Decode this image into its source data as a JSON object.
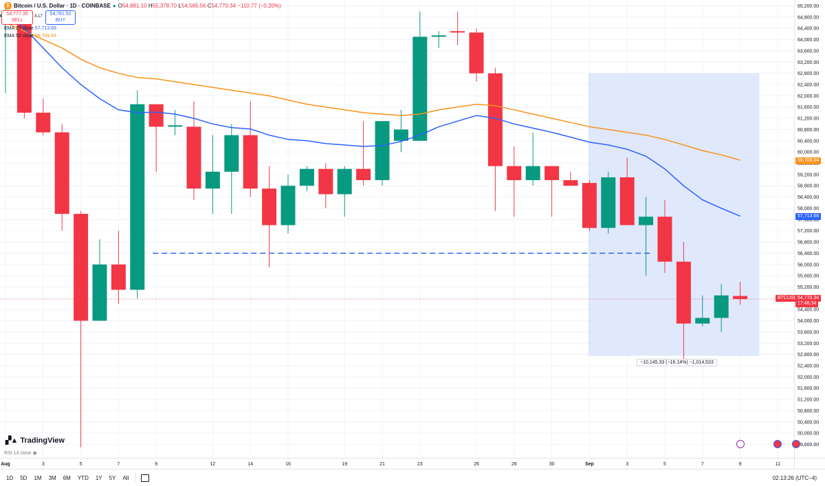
{
  "header": {
    "symbol": "Bitcoin / U.S. Dollar · 1D · COINBASE",
    "open": "54,881.10",
    "high": "55,378.70",
    "low": "54,565.56",
    "close": "54,770.34",
    "change": "−110.77 (−0.20%)"
  },
  "trade": {
    "sell_price": "54,777.35",
    "sell_label": "SELL",
    "spread": "4.17",
    "buy_price": "54,781.52",
    "buy_label": "BUY"
  },
  "indicators": {
    "ema20_label": "EMA 20 close",
    "ema20_value": "57,713.69",
    "ema50_label": "EMA 50 close",
    "ema50_value": "59,708.64",
    "rsi_label": "RSI 14 close"
  },
  "price_tags": {
    "ema20": "57,713.68",
    "ema50": "59,708.64",
    "symbol": "BTCUSD",
    "last": "54,770.34",
    "countdown": "17:46:34"
  },
  "measure_label": "−10,145.33 (−16.14%) −1,014,533",
  "logo": "TradingView",
  "timeframes": [
    "1D",
    "5D",
    "1M",
    "3M",
    "6M",
    "YTD",
    "1Y",
    "5Y",
    "All"
  ],
  "clock": "02:13:26 (UTC−4)",
  "colors": {
    "up": "#089981",
    "down": "#f23645",
    "ema20": "#2962ff",
    "ema50": "#f7931a",
    "range": "#dbe4fb"
  },
  "chart_data": {
    "type": "candlestick",
    "y_ticks": [
      49600,
      50000,
      50400,
      50800,
      51200,
      51600,
      52000,
      52400,
      52800,
      53200,
      53600,
      54000,
      54400,
      54800,
      55200,
      55600,
      56000,
      56400,
      56800,
      57200,
      57600,
      58000,
      58400,
      58800,
      59200,
      59600,
      60000,
      60400,
      60800,
      61200,
      61600,
      62000,
      62400,
      62800,
      63200,
      63600,
      64000,
      64400,
      64800,
      65200
    ],
    "x_ticks": [
      "Aug",
      "3",
      "5",
      "7",
      "9",
      "12",
      "14",
      "16",
      "19",
      "21",
      "23",
      "26",
      "28",
      "30",
      "Sep",
      "3",
      "5",
      "7",
      "9",
      "11"
    ],
    "candles": [
      {
        "o": 64800,
        "h": 65200,
        "l": 62100,
        "c": 64900
      },
      {
        "o": 64800,
        "h": 65000,
        "l": 61200,
        "c": 61400
      },
      {
        "o": 61400,
        "h": 61900,
        "l": 60600,
        "c": 60700
      },
      {
        "o": 60700,
        "h": 61000,
        "l": 57200,
        "c": 57800
      },
      {
        "o": 57800,
        "h": 57900,
        "l": 49500,
        "c": 54000
      },
      {
        "o": 54000,
        "h": 56900,
        "l": 54000,
        "c": 56000
      },
      {
        "o": 56000,
        "h": 57200,
        "l": 54600,
        "c": 55100
      },
      {
        "o": 55100,
        "h": 62200,
        "l": 54800,
        "c": 61700
      },
      {
        "o": 61700,
        "h": 61700,
        "l": 59300,
        "c": 60900
      },
      {
        "o": 60900,
        "h": 61500,
        "l": 60600,
        "c": 60950
      },
      {
        "o": 60900,
        "h": 61800,
        "l": 58300,
        "c": 58700
      },
      {
        "o": 58700,
        "h": 60600,
        "l": 57800,
        "c": 59300
      },
      {
        "o": 59300,
        "h": 61000,
        "l": 57800,
        "c": 60600
      },
      {
        "o": 60600,
        "h": 61800,
        "l": 58400,
        "c": 58700
      },
      {
        "o": 58700,
        "h": 59500,
        "l": 55900,
        "c": 57400
      },
      {
        "o": 57400,
        "h": 59200,
        "l": 57100,
        "c": 58800
      },
      {
        "o": 58800,
        "h": 59500,
        "l": 58600,
        "c": 59400
      },
      {
        "o": 59400,
        "h": 59600,
        "l": 58000,
        "c": 58500
      },
      {
        "o": 58500,
        "h": 59500,
        "l": 57700,
        "c": 59400
      },
      {
        "o": 59400,
        "h": 61100,
        "l": 58800,
        "c": 59000
      },
      {
        "o": 59000,
        "h": 61100,
        "l": 58800,
        "c": 61100
      },
      {
        "o": 60400,
        "h": 61500,
        "l": 60000,
        "c": 60800
      },
      {
        "o": 60400,
        "h": 65000,
        "l": 60400,
        "c": 64100
      },
      {
        "o": 64100,
        "h": 64300,
        "l": 63700,
        "c": 64150
      },
      {
        "o": 64300,
        "h": 65000,
        "l": 63800,
        "c": 64250
      },
      {
        "o": 64250,
        "h": 64400,
        "l": 62500,
        "c": 62800
      },
      {
        "o": 62800,
        "h": 63000,
        "l": 57900,
        "c": 59500
      },
      {
        "o": 59500,
        "h": 60200,
        "l": 57700,
        "c": 59000
      },
      {
        "o": 59000,
        "h": 60700,
        "l": 58800,
        "c": 59500
      },
      {
        "o": 59500,
        "h": 59500,
        "l": 57700,
        "c": 59000
      },
      {
        "o": 59000,
        "h": 59300,
        "l": 58900,
        "c": 58800
      },
      {
        "o": 58900,
        "h": 59000,
        "l": 57200,
        "c": 57300
      },
      {
        "o": 57300,
        "h": 59300,
        "l": 57100,
        "c": 59100
      },
      {
        "o": 59100,
        "h": 59800,
        "l": 57400,
        "c": 57400
      },
      {
        "o": 57400,
        "h": 58400,
        "l": 55600,
        "c": 57700
      },
      {
        "o": 57700,
        "h": 58300,
        "l": 55700,
        "c": 56100
      },
      {
        "o": 56100,
        "h": 56800,
        "l": 52600,
        "c": 53900
      },
      {
        "o": 53900,
        "h": 54900,
        "l": 53800,
        "c": 54100
      },
      {
        "o": 54100,
        "h": 55300,
        "l": 53600,
        "c": 54900
      },
      {
        "o": 54880,
        "h": 55380,
        "l": 54570,
        "c": 54770
      }
    ],
    "ema20": [
      65000,
      64400,
      63700,
      63000,
      62400,
      61900,
      61500,
      61400,
      61420,
      61350,
      61200,
      61000,
      60870,
      60820,
      60600,
      60450,
      60400,
      60300,
      60250,
      60200,
      60230,
      60380,
      60600,
      60900,
      61100,
      61300,
      61200,
      61000,
      60850,
      60700,
      60530,
      60350,
      60250,
      60100,
      59850,
      59400,
      58800,
      58300,
      58000,
      57720
    ],
    "ema50": [
      64600,
      64300,
      64000,
      63700,
      63300,
      63000,
      62800,
      62650,
      62600,
      62500,
      62400,
      62300,
      62200,
      62100,
      62000,
      61850,
      61700,
      61600,
      61500,
      61400,
      61350,
      61300,
      61350,
      61500,
      61600,
      61700,
      61650,
      61500,
      61350,
      61200,
      61050,
      60900,
      60800,
      60700,
      60600,
      60450,
      60250,
      60050,
      59900,
      59710
    ],
    "dashed_level": 56400,
    "range_box": {
      "from_index": 31,
      "to_index": 40,
      "high": 62800,
      "low": 52750
    },
    "ylim": [
      49400,
      65300
    ]
  }
}
